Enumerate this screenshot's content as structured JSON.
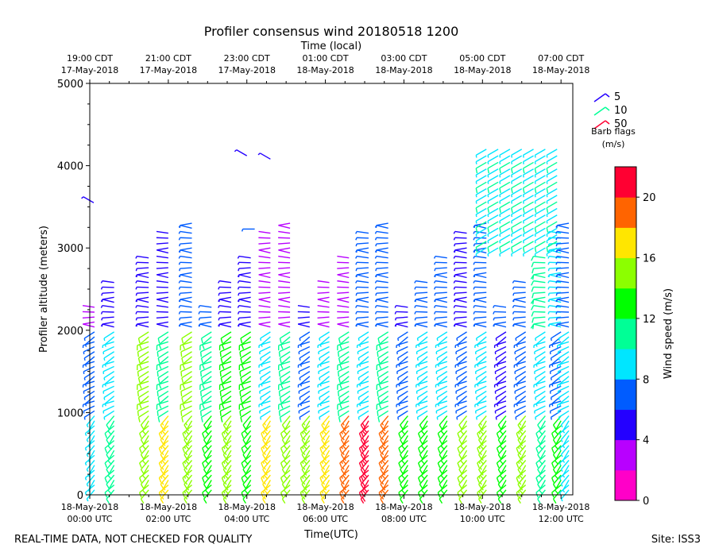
{
  "chart_data": {
    "type": "wind_barb_profile",
    "title": "Profiler consensus wind 20180518 1200",
    "top_axis_title": "Time (local)",
    "xlabel": "Time(UTC)",
    "ylabel": "Profiler altitude (meters)",
    "xlim_hours_utc": [
      0,
      12.3
    ],
    "ylim": [
      0,
      5000
    ],
    "y_ticks": [
      0,
      1000,
      2000,
      3000,
      4000,
      5000
    ],
    "bottom_ticks": [
      {
        "hour": 0,
        "line1": "18-May-2018",
        "line2": "00:00 UTC"
      },
      {
        "hour": 2,
        "line1": "18-May-2018",
        "line2": "02:00 UTC"
      },
      {
        "hour": 4,
        "line1": "18-May-2018",
        "line2": "04:00 UTC"
      },
      {
        "hour": 6,
        "line1": "18-May-2018",
        "line2": "06:00 UTC"
      },
      {
        "hour": 8,
        "line1": "18-May-2018",
        "line2": "08:00 UTC"
      },
      {
        "hour": 10,
        "line1": "18-May-2018",
        "line2": "10:00 UTC"
      },
      {
        "hour": 12,
        "line1": "18-May-2018",
        "line2": "12:00 UTC"
      }
    ],
    "top_ticks": [
      {
        "hour": 0,
        "line1": "19:00 CDT",
        "line2": "17-May-2018"
      },
      {
        "hour": 2,
        "line1": "21:00 CDT",
        "line2": "17-May-2018"
      },
      {
        "hour": 4,
        "line1": "23:00 CDT",
        "line2": "17-May-2018"
      },
      {
        "hour": 6,
        "line1": "01:00 CDT",
        "line2": "18-May-2018"
      },
      {
        "hour": 8,
        "line1": "03:00 CDT",
        "line2": "18-May-2018"
      },
      {
        "hour": 10,
        "line1": "05:00 CDT",
        "line2": "18-May-2018"
      },
      {
        "hour": 12,
        "line1": "07:00 CDT",
        "line2": "18-May-2018"
      }
    ],
    "legend": {
      "items": [
        {
          "label": "5",
          "speed": 5
        },
        {
          "label": "10",
          "speed": 10
        },
        {
          "label": "50",
          "speed": 50
        }
      ],
      "title_line1": "Barb flags",
      "title_line2": "(m/s)"
    },
    "colorbar": {
      "label": "Wind speed (m/s)",
      "min": 0,
      "max": 22,
      "ticks": [
        0,
        4,
        8,
        12,
        16,
        20
      ],
      "tick_labels": [
        "0",
        "4",
        "8",
        "12",
        "16",
        "20"
      ],
      "colors": [
        "#ff00c8",
        "#b800ff",
        "#2400ff",
        "#005cff",
        "#00e6ff",
        "#00ff96",
        "#00ff00",
        "#8cff00",
        "#ffe600",
        "#ff6400",
        "#ff0032"
      ]
    },
    "profile_times_hours_utc": [
      0.12,
      0.62,
      1.5,
      2.0,
      2.6,
      3.1,
      3.6,
      4.1,
      4.6,
      5.1,
      5.6,
      6.1,
      6.6,
      7.1,
      7.6,
      8.1,
      8.6,
      9.1,
      9.6,
      10.1,
      10.6,
      11.1,
      11.6,
      12.0,
      12.2
    ],
    "speed_profile_columns": [
      {
        "segment": "low (0-1000 m)",
        "speeds_by_time": [
          10,
          10,
          15,
          15,
          15,
          14,
          14,
          13,
          14,
          14,
          17,
          16,
          19,
          20,
          19,
          14,
          12,
          13,
          12,
          15,
          15,
          14,
          11,
          10,
          9
        ]
      },
      {
        "segment": "mid (1000-2000 m)",
        "speeds_by_time": [
          9,
          9,
          12,
          12,
          13,
          12,
          12,
          10,
          10,
          9,
          9,
          8,
          8,
          9,
          9,
          9,
          8,
          7,
          8,
          8,
          7,
          7,
          7,
          7,
          7
        ]
      },
      {
        "segment": "upper (2000-3400 m)",
        "speeds_by_time": [
          4,
          4,
          5,
          5,
          6,
          6,
          6,
          4,
          3,
          3,
          3,
          3,
          3,
          5,
          6,
          6,
          6,
          6,
          6,
          6,
          6,
          8,
          9,
          9,
          8
        ]
      }
    ]
  },
  "footer": {
    "left": "REAL-TIME DATA, NOT CHECKED FOR QUALITY",
    "right": "Site: ISS3"
  }
}
